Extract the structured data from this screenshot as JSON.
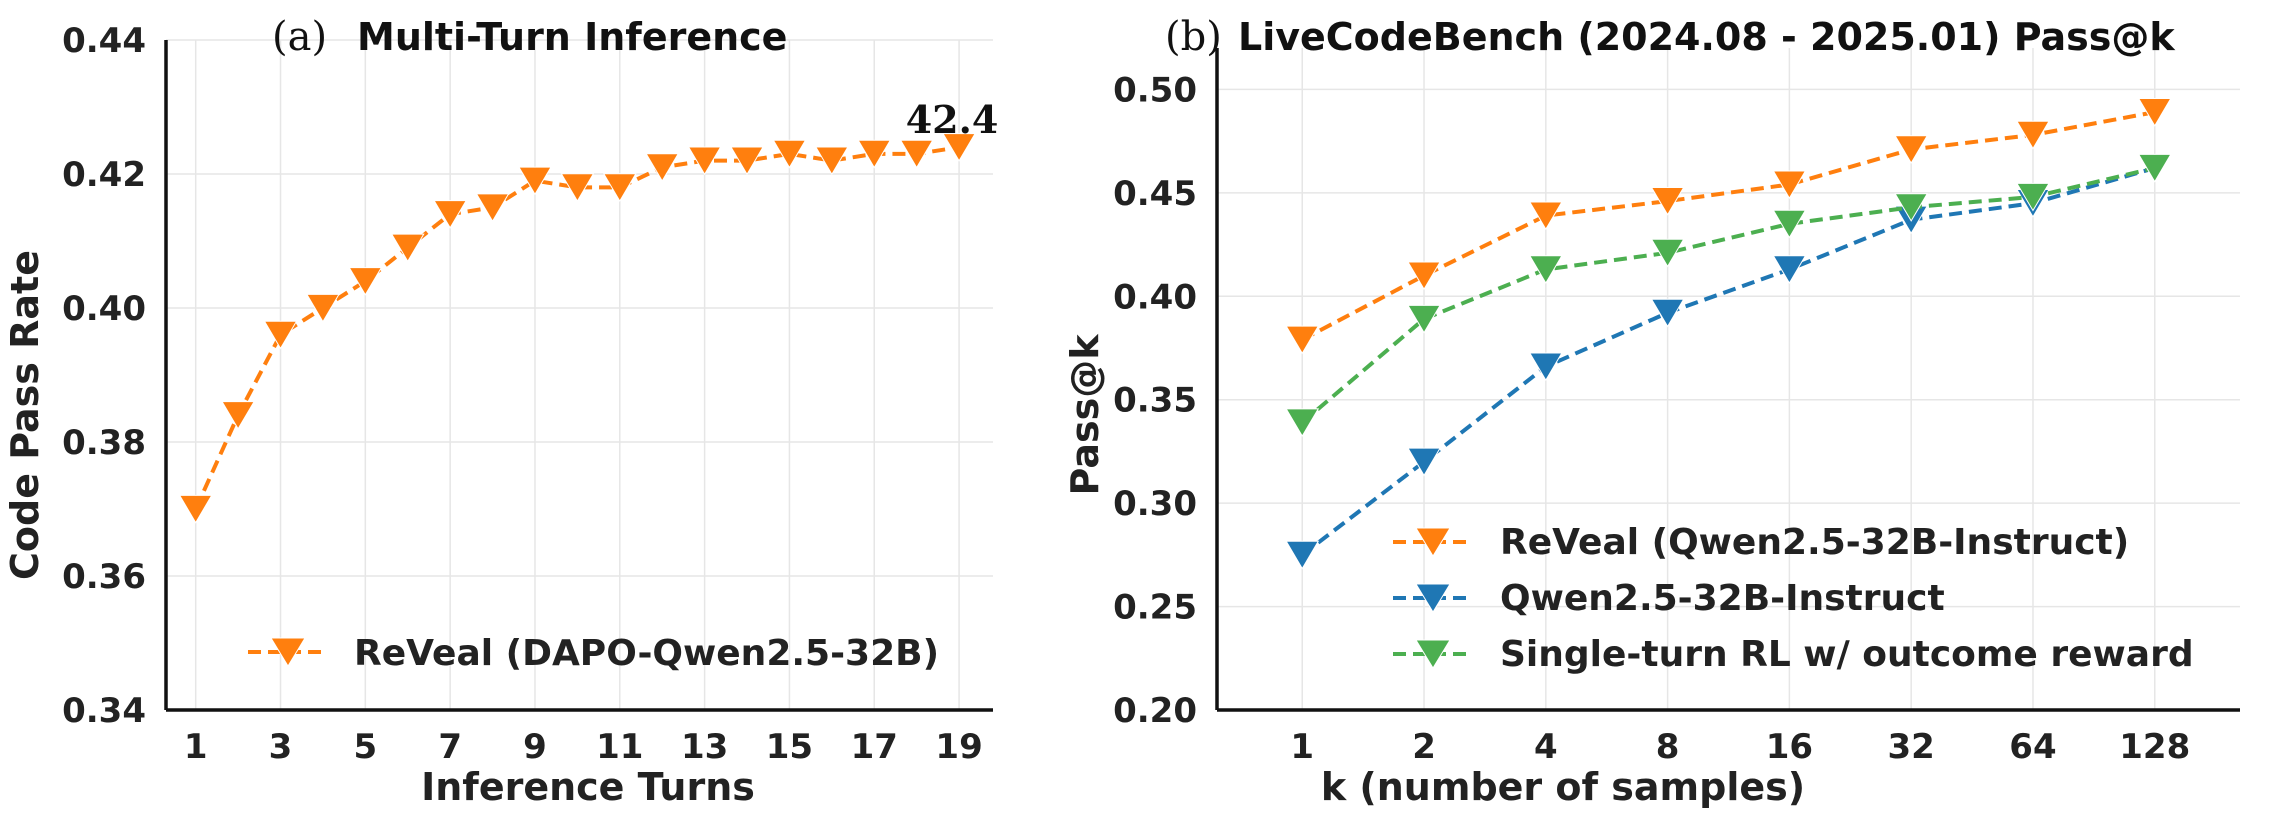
{
  "chart_data": [
    {
      "type": "line",
      "panel_label": "(a)",
      "title": "Multi-Turn Inference",
      "xlabel": "Inference Turns",
      "ylabel": "Code Pass Rate",
      "x": [
        1,
        2,
        3,
        4,
        5,
        6,
        7,
        8,
        9,
        10,
        11,
        12,
        13,
        14,
        15,
        16,
        17,
        18,
        19
      ],
      "xticks": [
        "1",
        "3",
        "5",
        "7",
        "9",
        "11",
        "13",
        "15",
        "17",
        "19"
      ],
      "xlim": [
        0.3,
        19.8
      ],
      "ylim": [
        0.34,
        0.44
      ],
      "yticks": [
        "0.34",
        "0.36",
        "0.38",
        "0.40",
        "0.42",
        "0.44"
      ],
      "grid": true,
      "legend_position": "bottom-right",
      "annotation": "42.4",
      "series": [
        {
          "name": "ReVeal (DAPO-Qwen2.5-32B)",
          "color": "#ff7f0e",
          "marker": "triangle-down",
          "linestyle": "dashed",
          "values": [
            0.37,
            0.384,
            0.396,
            0.4,
            0.404,
            0.409,
            0.414,
            0.415,
            0.419,
            0.418,
            0.418,
            0.421,
            0.422,
            0.422,
            0.423,
            0.422,
            0.423,
            0.423,
            0.424
          ]
        }
      ]
    },
    {
      "type": "line",
      "panel_label": "(b)",
      "title": "LiveCodeBench (2024.08 - 2025.01) Pass@k",
      "xlabel": "k (number of samples)",
      "ylabel": "Pass@k",
      "categories": [
        "1",
        "2",
        "4",
        "8",
        "16",
        "32",
        "64",
        "128"
      ],
      "ylim": [
        0.2,
        0.52
      ],
      "yticks": [
        "0.20",
        "0.25",
        "0.30",
        "0.35",
        "0.40",
        "0.45",
        "0.50"
      ],
      "grid": true,
      "legend_position": "bottom-right",
      "series": [
        {
          "name": "ReVeal (Qwen2.5-32B-Instruct)",
          "color": "#ff7f0e",
          "marker": "triangle-down",
          "linestyle": "dashed",
          "values": [
            0.379,
            0.41,
            0.439,
            0.446,
            0.454,
            0.471,
            0.478,
            0.489
          ]
        },
        {
          "name": "Qwen2.5-32B-Instruct",
          "color": "#1f77b4",
          "marker": "triangle-down",
          "linestyle": "dashed",
          "values": [
            0.275,
            0.32,
            0.366,
            0.392,
            0.413,
            0.437,
            0.445,
            0.462
          ]
        },
        {
          "name": "Single-turn RL w/ outcome reward",
          "color": "#4caf50",
          "marker": "triangle-down",
          "linestyle": "dashed",
          "values": [
            0.339,
            0.389,
            0.413,
            0.421,
            0.435,
            0.443,
            0.448,
            0.462
          ]
        }
      ]
    }
  ]
}
